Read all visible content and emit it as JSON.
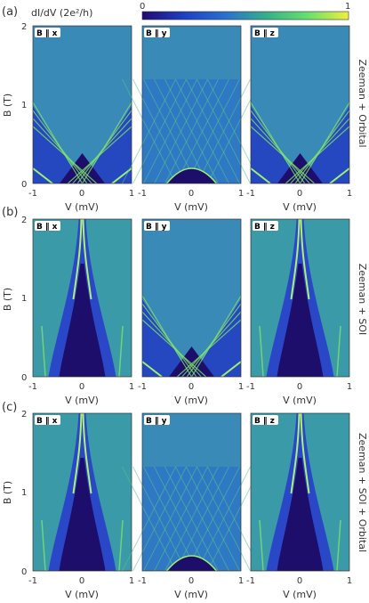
{
  "colorbar": {
    "label": "dI/dV (2e²/h)",
    "min_label": "0",
    "max_label": "1",
    "colors": [
      "#200a6e",
      "#1d3fc4",
      "#2a6fd0",
      "#33b08a",
      "#64e06e",
      "#f0f03a"
    ]
  },
  "rows": [
    {
      "label": "(a)",
      "title": "Zeeman + Orbital",
      "panels": [
        {
          "label": "B ∥ x",
          "kind": "cone"
        },
        {
          "label": "B ∥ y",
          "kind": "interference"
        },
        {
          "label": "B ∥ z",
          "kind": "cone"
        }
      ]
    },
    {
      "label": "(b)",
      "title": "Zeeman + SOI",
      "panels": [
        {
          "label": "B ∥ x",
          "kind": "protected"
        },
        {
          "label": "B ∥ y",
          "kind": "cone"
        },
        {
          "label": "B ∥ z",
          "kind": "protected"
        }
      ]
    },
    {
      "label": "(c)",
      "title": "Zeeman + SOI + Orbital",
      "panels": [
        {
          "label": "B ∥ x",
          "kind": "protected"
        },
        {
          "label": "B ∥ y",
          "kind": "interference"
        },
        {
          "label": "B ∥ z",
          "kind": "protected"
        }
      ]
    }
  ],
  "chart_data": {
    "type": "heatmap",
    "xlabel": "V (mV)",
    "ylabel": "B (T)",
    "xlim": [
      -1,
      1
    ],
    "ylim": [
      0,
      2
    ],
    "xticks": [
      "-1",
      "0",
      "1"
    ],
    "yticks": [
      "0",
      "1",
      "2"
    ],
    "colorbar_range": [
      0,
      1
    ],
    "grid": false
  }
}
